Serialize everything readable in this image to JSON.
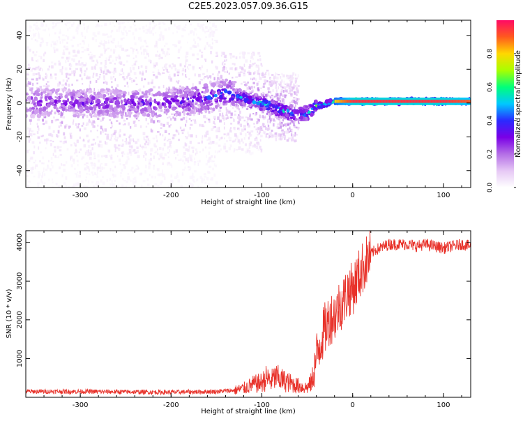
{
  "figure": {
    "title": "C2E5.2023.057.09.36.G15"
  },
  "colorbar": {
    "label": "Normalized spectral amplitude",
    "ticks": [
      "0.0",
      "0.2",
      "0.4",
      "0.6",
      "0.8"
    ],
    "tick_values": [
      0.0,
      0.2,
      0.4,
      0.6,
      0.8
    ],
    "range": [
      0,
      1
    ],
    "colors": [
      "#ffffff",
      "#e6c8f5",
      "#b46ee6",
      "#7a00e6",
      "#2a2aff",
      "#00c8ff",
      "#00ff7a",
      "#a8ff00",
      "#ffd800",
      "#ff5a1e",
      "#ff0a64"
    ]
  },
  "chart_data": [
    {
      "type": "heatmap",
      "title": "",
      "xlabel": "Height of straight line (km)",
      "ylabel": "Frequency (Hz)",
      "xlim": [
        -360,
        130
      ],
      "ylim": [
        -50,
        49
      ],
      "xticks": [
        -300,
        -200,
        -100,
        0,
        100
      ],
      "xtick_labels": [
        "-300",
        "-200",
        "-100",
        "0",
        "100"
      ],
      "yticks": [
        -40,
        -20,
        0,
        20,
        40
      ],
      "ytick_labels": [
        "-40",
        "-20",
        "0",
        "20",
        "40"
      ],
      "ridge": {
        "description_free": true,
        "x": [
          -360,
          -300,
          -200,
          -160,
          -140,
          -120,
          -100,
          -80,
          -60,
          -50,
          -40,
          -20,
          0,
          50,
          100,
          130
        ],
        "y": [
          0,
          0,
          0,
          3,
          6,
          3,
          0,
          -4,
          -7,
          -6,
          -2,
          1,
          1,
          1,
          1,
          1
        ],
        "amplitude": [
          0.35,
          0.35,
          0.38,
          0.45,
          0.5,
          0.55,
          0.6,
          0.6,
          0.55,
          0.6,
          0.7,
          0.8,
          0.95,
          0.95,
          0.95,
          0.9
        ]
      }
    },
    {
      "type": "line",
      "title": "",
      "xlabel": "Height of straight line (km)",
      "ylabel": "SNR (10 * v/v)",
      "xlim": [
        -360,
        130
      ],
      "ylim": [
        0,
        4300
      ],
      "xticks": [
        -300,
        -200,
        -100,
        0,
        100
      ],
      "xtick_labels": [
        "-300",
        "-200",
        "-100",
        "0",
        "100"
      ],
      "yticks": [
        1000,
        2000,
        3000,
        4000
      ],
      "ytick_labels": [
        "1000",
        "2000",
        "3000",
        "4000"
      ],
      "color": "#e8322a",
      "series": [
        {
          "x": [
            -360,
            -300,
            -250,
            -200,
            -150,
            -130,
            -120,
            -110,
            -100,
            -95,
            -90,
            -85,
            -80,
            -75,
            -70,
            -65,
            -60,
            -55,
            -50,
            -45,
            -40,
            -35,
            -30,
            -25,
            -20,
            -15,
            -10,
            -5,
            0,
            5,
            10,
            15,
            20,
            25,
            30,
            40,
            50,
            60,
            70,
            80,
            90,
            100,
            110,
            120,
            130
          ],
          "y": [
            150,
            150,
            140,
            130,
            150,
            180,
            230,
            330,
            380,
            500,
            420,
            520,
            470,
            420,
            380,
            330,
            300,
            260,
            250,
            400,
            1000,
            1500,
            1800,
            2050,
            2100,
            2350,
            2500,
            2750,
            2800,
            3050,
            3300,
            3500,
            3700,
            3800,
            3850,
            3950,
            3950,
            3950,
            3900,
            3950,
            3900,
            3850,
            3900,
            3950,
            3900
          ]
        }
      ]
    }
  ]
}
